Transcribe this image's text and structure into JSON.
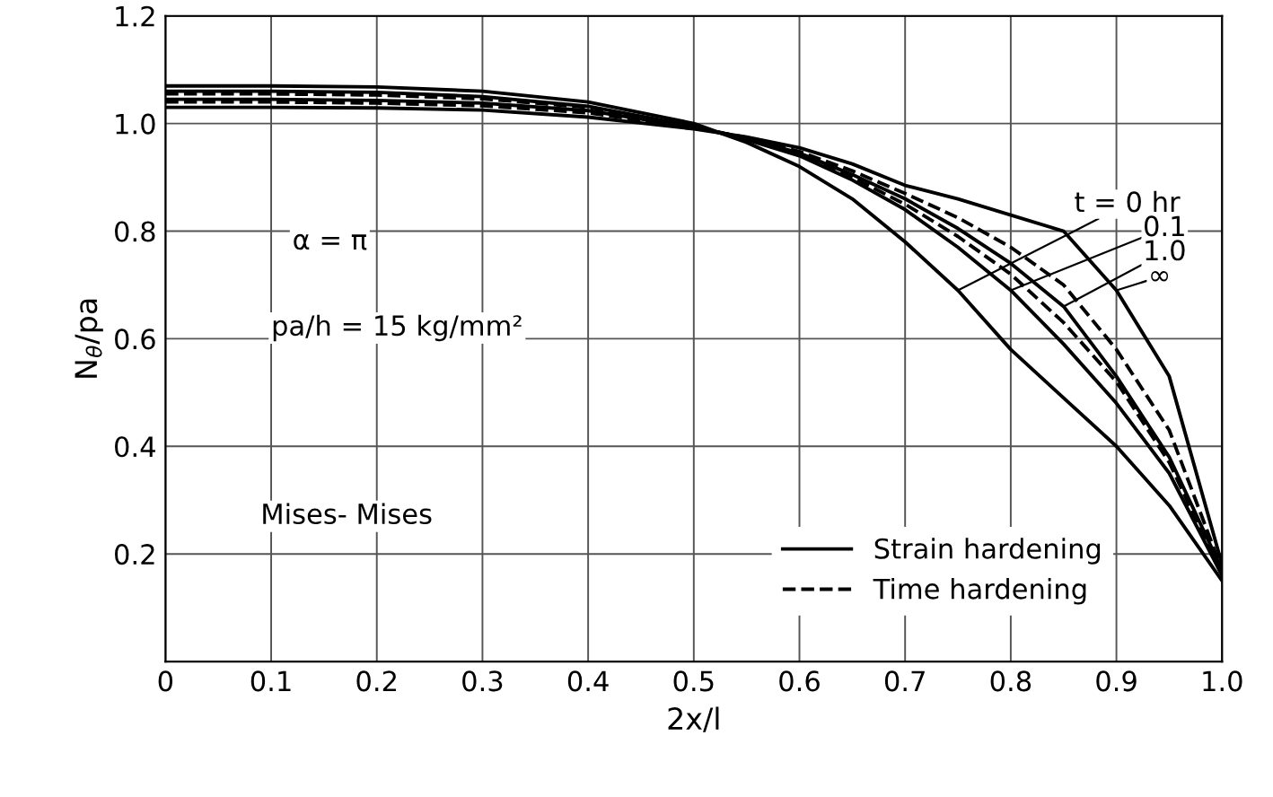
{
  "chart_data": {
    "type": "line",
    "xlabel": "2x/l",
    "ylabel": "N$_{θ}$/pa",
    "x": [
      0,
      0.1,
      0.2,
      0.3,
      0.4,
      0.5,
      0.55,
      0.6,
      0.65,
      0.7,
      0.75,
      0.8,
      0.85,
      0.9,
      0.95,
      1.0
    ],
    "series": [
      {
        "name": "Strain hardening",
        "color": "#000000",
        "line_style": "solid",
        "values": [
          1.07,
          1.07,
          1.068,
          1.06,
          1.04,
          1.0,
          0.965,
          0.92,
          0.86,
          0.78,
          0.69,
          0.58,
          0.49,
          0.4,
          0.29,
          0.15
        ]
      },
      {
        "color": "#000000",
        "line_style": "solid",
        "values": [
          1.06,
          1.06,
          1.058,
          1.05,
          1.032,
          0.995,
          0.97,
          0.94,
          0.895,
          0.84,
          0.77,
          0.69,
          0.59,
          0.48,
          0.35,
          0.16
        ]
      },
      {
        "name": "Time hardening",
        "color": "#000000",
        "line_style": "dashed",
        "values": [
          1.055,
          1.055,
          1.053,
          1.046,
          1.03,
          0.995,
          0.972,
          0.943,
          0.9,
          0.85,
          0.79,
          0.72,
          0.63,
          0.52,
          0.37,
          0.16
        ]
      },
      {
        "color": "#000000",
        "line_style": "solid",
        "values": [
          1.045,
          1.045,
          1.043,
          1.038,
          1.024,
          0.993,
          0.973,
          0.945,
          0.905,
          0.86,
          0.805,
          0.74,
          0.66,
          0.53,
          0.38,
          0.17
        ]
      },
      {
        "color": "#000000",
        "line_style": "dashed",
        "values": [
          1.04,
          1.04,
          1.038,
          1.033,
          1.02,
          0.992,
          0.974,
          0.948,
          0.912,
          0.87,
          0.825,
          0.77,
          0.7,
          0.58,
          0.43,
          0.17
        ]
      },
      {
        "color": "#000000",
        "line_style": "solid",
        "values": [
          1.03,
          1.03,
          1.029,
          1.025,
          1.012,
          0.99,
          0.975,
          0.955,
          0.925,
          0.885,
          0.86,
          0.83,
          0.8,
          0.69,
          0.53,
          0.18
        ]
      }
    ],
    "annotations": [
      "α = π",
      "pa/h = 15 kg/mm²",
      "Mises- Mises",
      {
        "text": "t = 0 hr",
        "x": 0.75,
        "y": 0.69
      },
      {
        "text": "0.1",
        "x": 0.8,
        "y": 0.69
      },
      {
        "text": "1.0",
        "x": 0.85,
        "y": 0.66
      },
      {
        "text": "∞",
        "x": 0.9,
        "y": 0.69
      }
    ],
    "xlim": [
      0,
      1.0
    ],
    "ylim": [
      0,
      1.2
    ],
    "xticks": [
      0,
      0.1,
      0.2,
      0.3,
      0.4,
      0.5,
      0.6,
      0.7,
      0.8,
      0.9,
      {
        "value": 1.0,
        "label": "1.0"
      }
    ],
    "yticks": [
      {
        "value": 0,
        "label": null
      },
      0.2,
      0.4,
      0.6,
      0.8,
      {
        "value": 1.0,
        "label": "1.0"
      },
      1.2
    ],
    "grid": true,
    "legend": "bottom right"
  }
}
